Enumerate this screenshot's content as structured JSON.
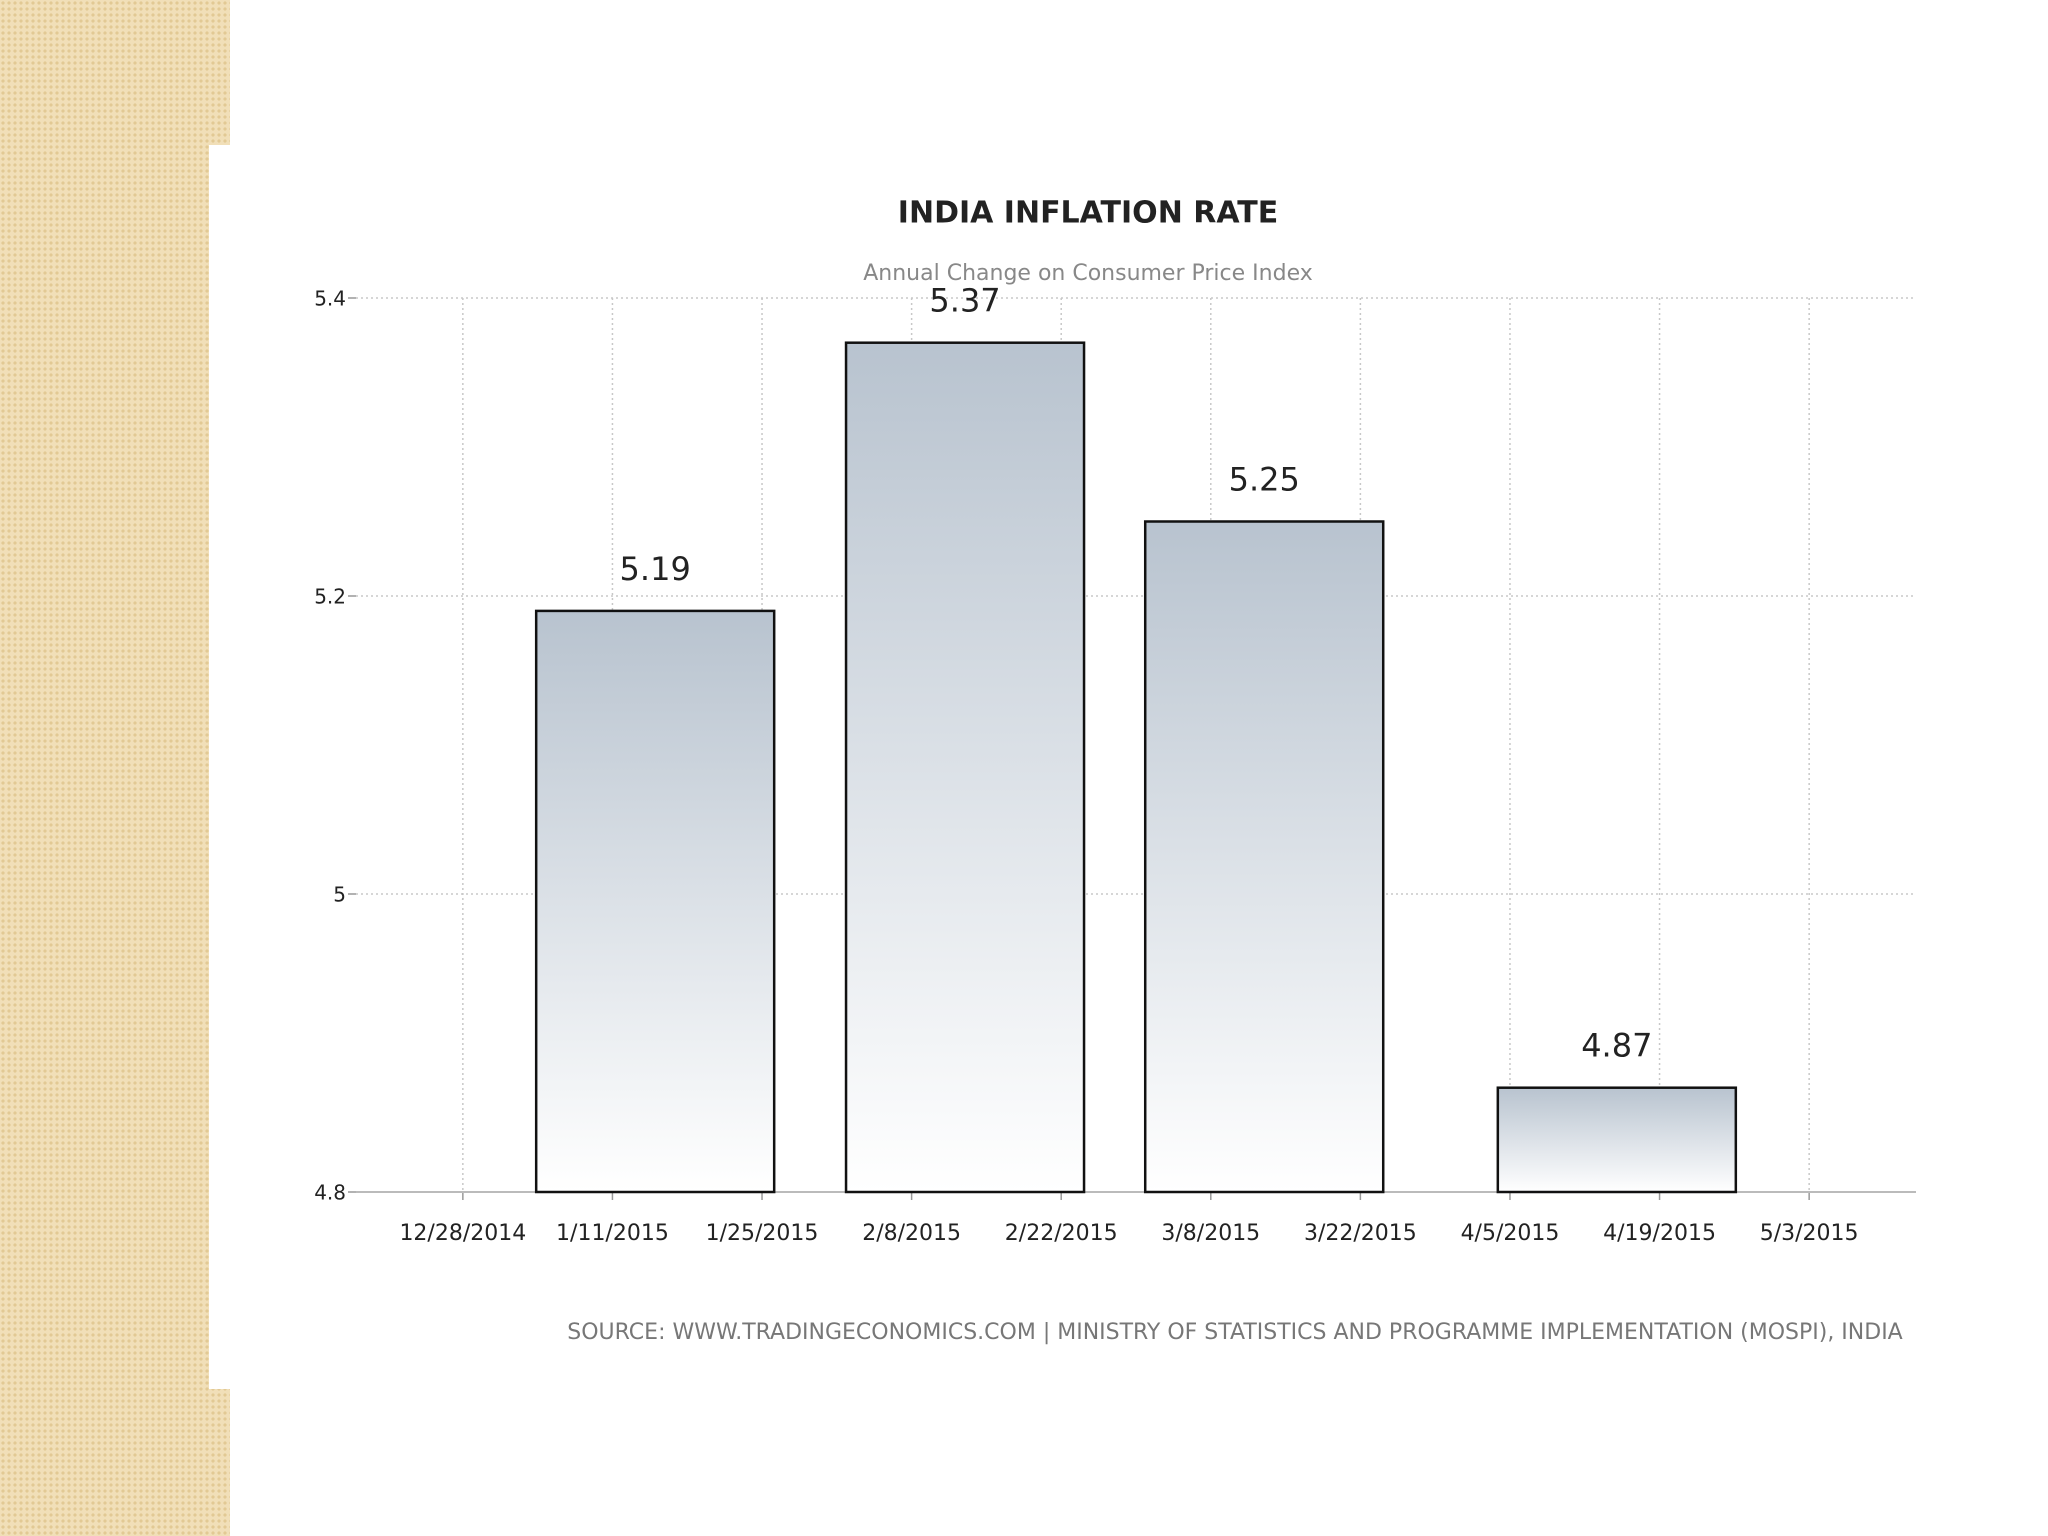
{
  "chart_data": {
    "type": "bar",
    "title": "INDIA INFLATION RATE",
    "subtitle": "Annual Change on Consumer Price Index",
    "source": "SOURCE: WWW.TRADINGECONOMICS.COM | MINISTRY OF STATISTICS AND PROGRAMME IMPLEMENTATION (MOSPI), INDIA",
    "x": [
      "1/15/2015",
      "2/13/2015",
      "3/13/2015",
      "4/15/2015"
    ],
    "values": [
      5.19,
      5.37,
      5.25,
      4.87
    ],
    "color": "#b8c3cf",
    "xlim": [
      "12/18/2014",
      "5/13/2015"
    ],
    "xticks": [
      "12/28/2014",
      "1/11/2015",
      "1/25/2015",
      "2/8/2015",
      "2/22/2015",
      "3/8/2015",
      "3/22/2015",
      "4/5/2015",
      "4/19/2015",
      "5/3/2015"
    ],
    "ylim": [
      4.8,
      5.4
    ],
    "yticks": [
      4.8,
      5,
      5.2,
      5.4
    ],
    "grid": true
  }
}
